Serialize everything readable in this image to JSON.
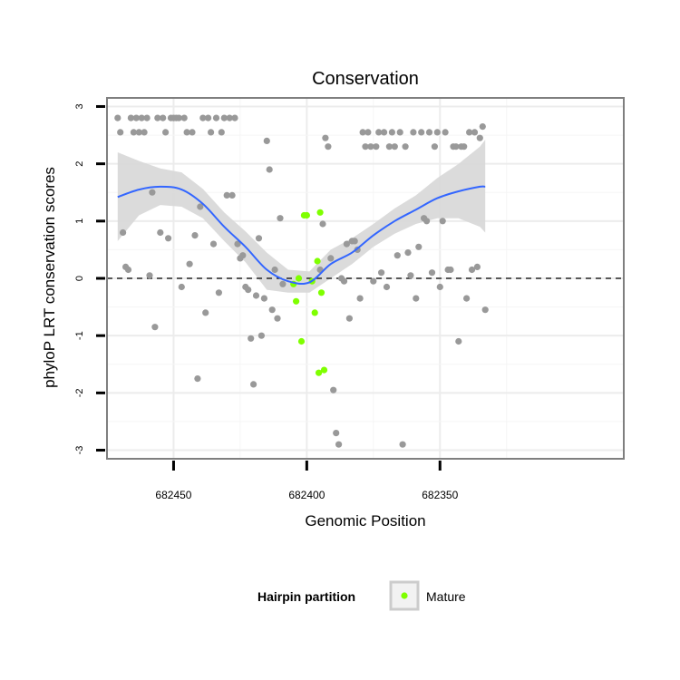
{
  "chart_data": {
    "type": "scatter",
    "title": "Conservation",
    "xlabel": "Genomic Position",
    "ylabel": "phyloP LRT conservation scores",
    "x_reversed": true,
    "xlim": [
      682475,
      682281
    ],
    "ylim": [
      -3.15,
      3.15
    ],
    "x_ticks": [
      682450,
      682400,
      682350
    ],
    "x_tick_labels": [
      "682450",
      "682400",
      "682350"
    ],
    "y_ticks": [
      -3,
      -2,
      -1,
      0,
      1,
      2,
      3
    ],
    "y_tick_labels": [
      "-3",
      "-2",
      "-1",
      "0",
      "1",
      "2",
      "3"
    ],
    "grid": true,
    "reference_line": {
      "y": 0,
      "style": "dashed"
    },
    "legend": {
      "title": "Hairpin partition",
      "entries": [
        "Mature"
      ],
      "position": "bottom"
    },
    "colors": {
      "points": "#999999",
      "mature": "#7fff00",
      "smooth": "#3366ff",
      "ribbon": "#d9d9d9",
      "panel_border": "#7f7f7f"
    },
    "series": [
      {
        "name": "",
        "points": [
          [
            682471,
            2.8
          ],
          [
            682470,
            2.55
          ],
          [
            682469,
            0.8
          ],
          [
            682468,
            0.2
          ],
          [
            682467,
            0.15
          ],
          [
            682466,
            2.8
          ],
          [
            682465,
            2.55
          ],
          [
            682464,
            2.8
          ],
          [
            682463,
            2.55
          ],
          [
            682462,
            2.8
          ],
          [
            682461,
            2.55
          ],
          [
            682460,
            2.8
          ],
          [
            682459,
            0.05
          ],
          [
            682458,
            1.5
          ],
          [
            682457,
            -0.85
          ],
          [
            682456,
            2.8
          ],
          [
            682455,
            0.8
          ],
          [
            682454,
            2.8
          ],
          [
            682453,
            2.55
          ],
          [
            682452,
            0.7
          ],
          [
            682451,
            2.8
          ],
          [
            682450,
            2.8
          ],
          [
            682449,
            2.8
          ],
          [
            682448,
            2.8
          ],
          [
            682447,
            -0.15
          ],
          [
            682446,
            2.8
          ],
          [
            682445,
            2.55
          ],
          [
            682444,
            0.25
          ],
          [
            682443,
            2.55
          ],
          [
            682442,
            0.75
          ],
          [
            682441,
            -1.75
          ],
          [
            682440,
            1.25
          ],
          [
            682439,
            2.8
          ],
          [
            682438,
            -0.6
          ],
          [
            682437,
            2.8
          ],
          [
            682436,
            2.55
          ],
          [
            682435,
            0.6
          ],
          [
            682434,
            2.8
          ],
          [
            682433,
            -0.25
          ],
          [
            682432,
            2.55
          ],
          [
            682431,
            2.8
          ],
          [
            682430,
            1.45
          ],
          [
            682429,
            2.8
          ],
          [
            682428,
            1.45
          ],
          [
            682427,
            2.8
          ],
          [
            682426,
            0.6
          ],
          [
            682425,
            0.35
          ],
          [
            682424,
            0.4
          ],
          [
            682423,
            -0.15
          ],
          [
            682422,
            -0.2
          ],
          [
            682421,
            -1.05
          ],
          [
            682420,
            -1.85
          ],
          [
            682419,
            -0.3
          ],
          [
            682418,
            0.7
          ],
          [
            682417,
            -1.0
          ],
          [
            682416,
            -0.35
          ],
          [
            682415,
            2.4
          ],
          [
            682414,
            1.9
          ],
          [
            682413,
            -0.55
          ],
          [
            682412,
            0.15
          ],
          [
            682411,
            -0.7
          ],
          [
            682410,
            1.05
          ],
          [
            682409,
            -0.1
          ],
          [
            682395,
            0.15
          ],
          [
            682394,
            0.95
          ],
          [
            682393,
            2.45
          ],
          [
            682392,
            2.3
          ],
          [
            682391,
            0.35
          ],
          [
            682390,
            -1.95
          ],
          [
            682389,
            -2.7
          ],
          [
            682388,
            -2.9
          ],
          [
            682387,
            0.0
          ],
          [
            682386,
            -0.05
          ],
          [
            682385,
            0.6
          ],
          [
            682384,
            -0.7
          ],
          [
            682383,
            0.65
          ],
          [
            682382,
            0.65
          ],
          [
            682381,
            0.5
          ],
          [
            682380,
            -0.35
          ],
          [
            682379,
            2.55
          ],
          [
            682378,
            2.3
          ],
          [
            682377,
            2.55
          ],
          [
            682376,
            2.3
          ],
          [
            682375,
            -0.05
          ],
          [
            682374,
            2.3
          ],
          [
            682373,
            2.55
          ],
          [
            682372,
            0.1
          ],
          [
            682371,
            2.55
          ],
          [
            682370,
            -0.15
          ],
          [
            682369,
            2.3
          ],
          [
            682368,
            2.55
          ],
          [
            682367,
            2.3
          ],
          [
            682366,
            0.4
          ],
          [
            682365,
            2.55
          ],
          [
            682364,
            -2.9
          ],
          [
            682363,
            2.3
          ],
          [
            682362,
            0.45
          ],
          [
            682361,
            0.05
          ],
          [
            682360,
            2.55
          ],
          [
            682359,
            -0.35
          ],
          [
            682358,
            0.55
          ],
          [
            682357,
            2.55
          ],
          [
            682356,
            1.05
          ],
          [
            682355,
            1.0
          ],
          [
            682354,
            2.55
          ],
          [
            682353,
            0.1
          ],
          [
            682352,
            2.3
          ],
          [
            682351,
            2.55
          ],
          [
            682350,
            -0.15
          ],
          [
            682349,
            1.0
          ],
          [
            682348,
            2.55
          ],
          [
            682347,
            0.15
          ],
          [
            682346,
            0.15
          ],
          [
            682345,
            2.3
          ],
          [
            682344,
            2.3
          ],
          [
            682343,
            -1.1
          ],
          [
            682342,
            2.3
          ],
          [
            682341,
            2.3
          ],
          [
            682340,
            -0.35
          ],
          [
            682339,
            2.55
          ],
          [
            682338,
            0.15
          ],
          [
            682337,
            2.55
          ],
          [
            682336,
            0.2
          ],
          [
            682335,
            2.45
          ],
          [
            682334,
            2.65
          ],
          [
            682333,
            -0.55
          ]
        ]
      },
      {
        "name": "Mature",
        "points": [
          [
            682405,
            -0.1
          ],
          [
            682404,
            -0.4
          ],
          [
            682403,
            0.0
          ],
          [
            682402,
            -1.1
          ],
          [
            682401,
            1.1
          ],
          [
            682400,
            1.1
          ],
          [
            682398,
            -0.05
          ],
          [
            682397,
            -0.6
          ],
          [
            682396,
            0.3
          ],
          [
            682395.5,
            -1.65
          ],
          [
            682395,
            1.15
          ],
          [
            682394.5,
            -0.25
          ],
          [
            682393.5,
            -1.6
          ]
        ]
      }
    ],
    "smooth": {
      "x": [
        682471,
        682463,
        682455,
        682447,
        682439,
        682431,
        682423,
        682415,
        682407,
        682399,
        682391,
        682383,
        682375,
        682367,
        682359,
        682351,
        682343,
        682335,
        682333
      ],
      "y": [
        1.42,
        1.55,
        1.6,
        1.55,
        1.3,
        0.9,
        0.55,
        0.15,
        -0.05,
        -0.07,
        0.25,
        0.45,
        0.75,
        1.0,
        1.2,
        1.4,
        1.52,
        1.6,
        1.6
      ],
      "lower": [
        0.65,
        1.1,
        1.28,
        1.25,
        1.05,
        0.65,
        0.28,
        -0.2,
        -0.25,
        -0.25,
        0.0,
        0.25,
        0.55,
        0.78,
        0.95,
        1.05,
        1.05,
        0.9,
        0.8
      ],
      "upper": [
        2.2,
        2.05,
        1.92,
        1.85,
        1.56,
        1.15,
        0.82,
        0.45,
        0.15,
        0.12,
        0.5,
        0.7,
        0.95,
        1.22,
        1.45,
        1.75,
        2.0,
        2.3,
        2.42
      ]
    }
  }
}
